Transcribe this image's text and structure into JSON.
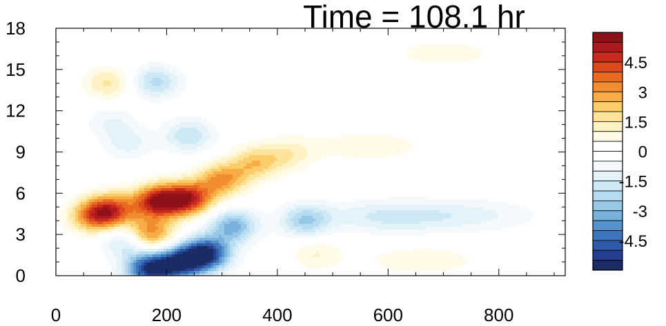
{
  "chart_data": {
    "type": "heatmap",
    "title": "Time = 108.1 hr",
    "xlabel": "",
    "ylabel": "",
    "xlim": [
      0,
      920
    ],
    "ylim": [
      0,
      18
    ],
    "x_ticks": [
      0,
      200,
      400,
      600,
      800
    ],
    "y_ticks": [
      0,
      3,
      6,
      9,
      12,
      15,
      18
    ],
    "x_tick_labels": [
      "0",
      "200",
      "400",
      "600",
      "800"
    ],
    "y_tick_labels": [
      "0",
      "3",
      "6",
      "9",
      "12",
      "15",
      "18"
    ],
    "colorbar": {
      "levels": [
        -6,
        -5.5,
        -5,
        -4.5,
        -4,
        -3.5,
        -3,
        -2.5,
        -2,
        -1.5,
        -1,
        -0.5,
        0,
        0.5,
        1,
        1.5,
        2,
        2.5,
        3,
        3.5,
        4,
        4.5,
        5,
        5.5,
        6
      ],
      "colors": [
        "#1b2b63",
        "#243f8f",
        "#2f5aa8",
        "#3e75bd",
        "#5692cb",
        "#79b1dc",
        "#98c8e8",
        "#b6dcf1",
        "#cfe8f5",
        "#e4f2f9",
        "#f3f9fc",
        "#ffffff",
        "#ffffff",
        "#fffbe8",
        "#fff2c4",
        "#fde49a",
        "#fbcc6a",
        "#f7ac45",
        "#f28c30",
        "#ea6a22",
        "#dd4a1f",
        "#c92a1e",
        "#ae1a1b",
        "#8d1116"
      ],
      "labels": [
        "4.5",
        "3",
        "1.5",
        "0",
        "-1.5",
        "-3",
        "-4.5"
      ],
      "label_values": [
        4.5,
        3,
        1.5,
        0,
        -1.5,
        -3,
        -4.5
      ]
    },
    "features": [
      {
        "x": 185,
        "y": 5.4,
        "value": 5.2
      },
      {
        "x": 240,
        "y": 5.6,
        "value": 4.6
      },
      {
        "x": 100,
        "y": 4.8,
        "value": 3.6
      },
      {
        "x": 300,
        "y": 7.0,
        "value": 3.0
      },
      {
        "x": 360,
        "y": 8.2,
        "value": 2.2
      },
      {
        "x": 420,
        "y": 8.8,
        "value": 1.2
      },
      {
        "x": 560,
        "y": 9.4,
        "value": 0.8
      },
      {
        "x": 70,
        "y": 4.3,
        "value": 3.2
      },
      {
        "x": 165,
        "y": 3.0,
        "value": 4.0
      },
      {
        "x": 95,
        "y": 14.0,
        "value": 1.6
      },
      {
        "x": 170,
        "y": 0.5,
        "value": -5.2
      },
      {
        "x": 225,
        "y": 0.9,
        "value": -4.4
      },
      {
        "x": 270,
        "y": 1.6,
        "value": -5.6
      },
      {
        "x": 320,
        "y": 3.6,
        "value": -3.2
      },
      {
        "x": 450,
        "y": 4.0,
        "value": -2.4
      },
      {
        "x": 600,
        "y": 4.3,
        "value": -1.6
      },
      {
        "x": 760,
        "y": 4.4,
        "value": -1.0
      },
      {
        "x": 130,
        "y": 2.6,
        "value": -2.6
      },
      {
        "x": 180,
        "y": 14.1,
        "value": -2.2
      },
      {
        "x": 240,
        "y": 10.2,
        "value": -2.0
      },
      {
        "x": 130,
        "y": 9.6,
        "value": -1.2
      },
      {
        "x": 100,
        "y": 11.2,
        "value": -1.0
      },
      {
        "x": 660,
        "y": 1.1,
        "value": 0.8
      },
      {
        "x": 470,
        "y": 1.6,
        "value": 1.0
      },
      {
        "x": 700,
        "y": 16.2,
        "value": 0.7
      }
    ]
  }
}
